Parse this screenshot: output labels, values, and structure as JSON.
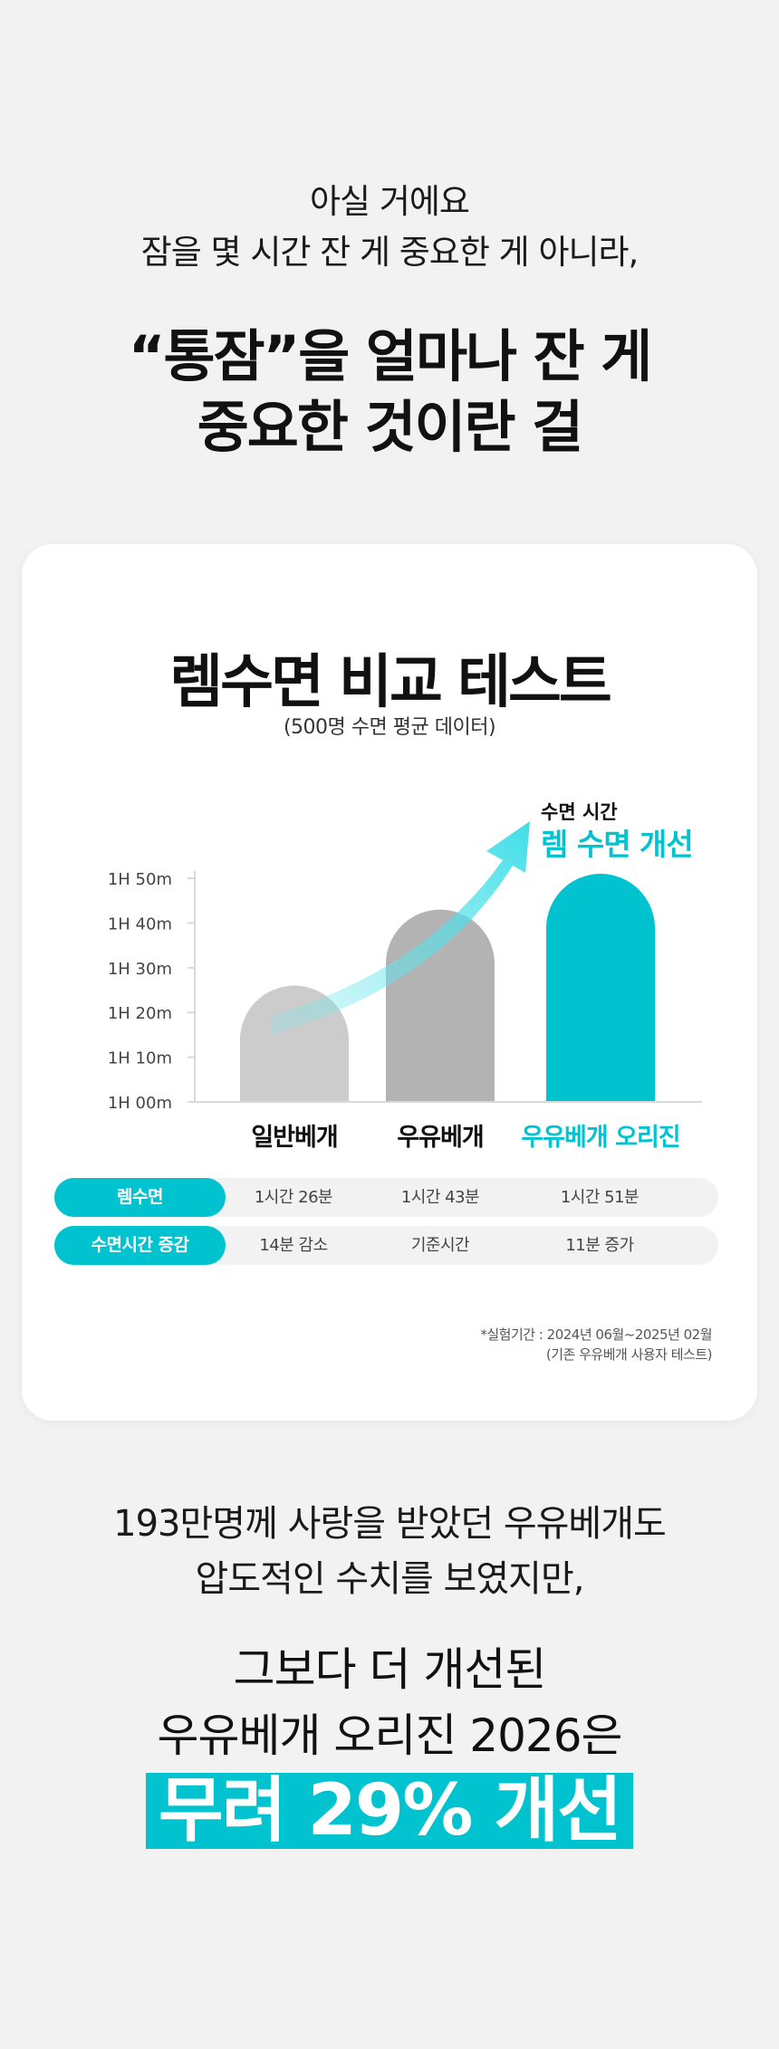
{
  "intro": {
    "line1": "아실 거에요",
    "line2": "잠을 몇 시간 잔 게 중요한 게 아니라,"
  },
  "headline": {
    "line1": "“통잠”을 얼마나 잔 게",
    "line2": "중요한 것이란 걸"
  },
  "card": {
    "title": "렘수면 비교 테스트",
    "subtitle": "(500명 수면 평균 데이터)",
    "annotation_small": "수면 시간",
    "annotation_big": "렘 수면 개선"
  },
  "chart_data": {
    "type": "bar",
    "title": "렘수면 비교 테스트",
    "subtitle": "(500명 수면 평균 데이터)",
    "categories": [
      "일반베개",
      "우유베개",
      "우유베개 오리진"
    ],
    "values_minutes": [
      86,
      103,
      111
    ],
    "y_ticks": [
      "1H 00m",
      "1H 10m",
      "1H 20m",
      "1H 30m",
      "1H 40m",
      "1H 50m"
    ],
    "ylim_minutes": [
      60,
      110
    ],
    "colors": [
      "#cccccc",
      "#b3b3b3",
      "#00c3cf"
    ],
    "grid": false,
    "annotation": "수면 시간 렘 수면 개선"
  },
  "table": {
    "rows": [
      {
        "label": "렘수면",
        "cells": [
          "1시간 26분",
          "1시간 43분",
          "1시간 51분"
        ]
      },
      {
        "label": "수면시간 증감",
        "cells": [
          "14분 감소",
          "기준시간",
          "11분 증가"
        ]
      }
    ]
  },
  "footnote": {
    "line1": "*실험기간 : 2024년 06월~2025년 02월",
    "line2": "(기존 우유베개 사용자 테스트)"
  },
  "bottom": {
    "line1": "193만명께 사랑을 받았던 우유베개도",
    "line2": "압도적인 수치를 보였지만,",
    "line3": "그보다 더 개선된",
    "line4": "우유베개 오리진 2026은",
    "highlight": "무려 29% 개선"
  },
  "colors": {
    "accent": "#00c3cf",
    "background": "#f2f2f2"
  }
}
